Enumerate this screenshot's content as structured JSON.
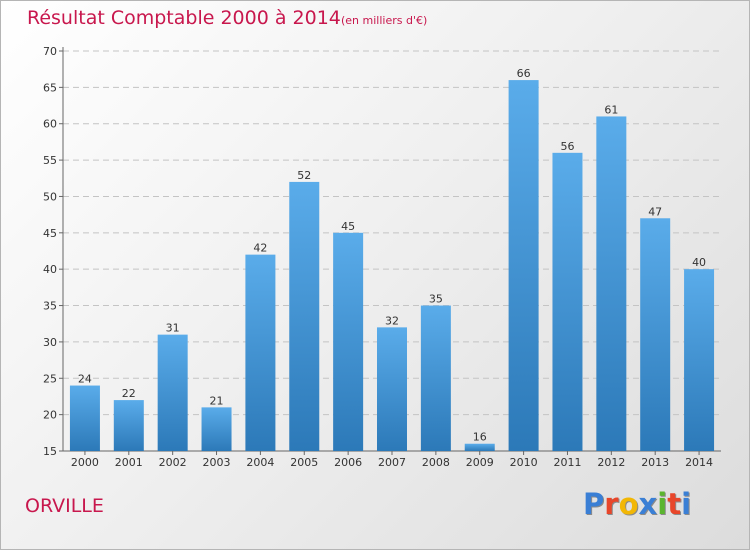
{
  "header": {
    "title": "Résultat Comptable 2000 à 2014",
    "subtitle": "(en milliers d'€)"
  },
  "footer": {
    "commune": "ORVILLE",
    "brand": "Proxiti",
    "brand_colors": [
      "#3a7fd5",
      "#e8462a",
      "#f2b705",
      "#3a7fd5",
      "#5ab52e",
      "#e8462a",
      "#3a7fd5"
    ]
  },
  "colors": {
    "bar_light": "#5aacea",
    "bar_dark": "#2c79b8",
    "accent": "#c8174d"
  },
  "chart_data": {
    "type": "bar",
    "categories": [
      "2000",
      "2001",
      "2002",
      "2003",
      "2004",
      "2005",
      "2006",
      "2007",
      "2008",
      "2009",
      "2010",
      "2011",
      "2012",
      "2013",
      "2014"
    ],
    "values": [
      24,
      22,
      31,
      21,
      42,
      52,
      45,
      32,
      35,
      16,
      66,
      56,
      61,
      47,
      40
    ],
    "ylim": [
      15,
      70
    ],
    "yticks": [
      15,
      20,
      25,
      30,
      35,
      40,
      45,
      50,
      55,
      60,
      65,
      70
    ],
    "grid": true
  }
}
